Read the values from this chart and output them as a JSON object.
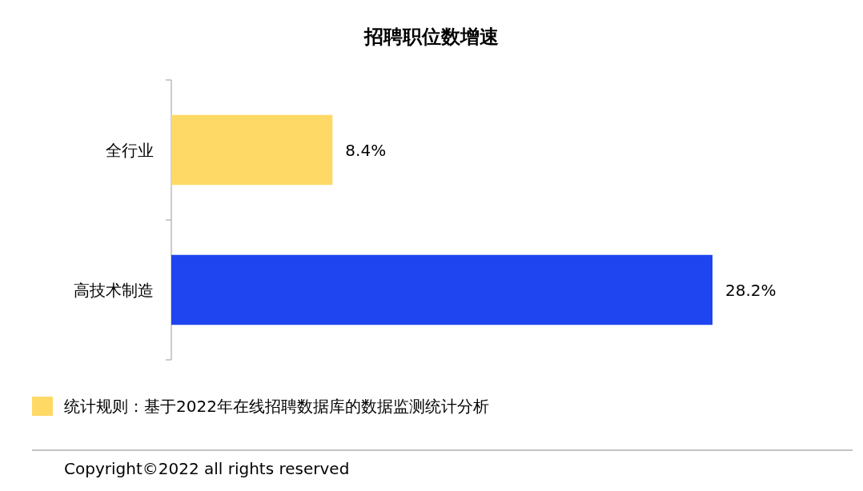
{
  "chart_data": {
    "type": "bar",
    "title": "招聘职位数增速",
    "orientation": "horizontal",
    "categories": [
      "全行业",
      "高技术制造"
    ],
    "values": [
      8.4,
      28.2
    ],
    "colors": [
      "#ffd966",
      "#1f45f0"
    ],
    "value_labels": [
      "8.4%",
      "28.2%"
    ],
    "annotations": [
      "统计规则：基于2022年在线招聘数据库的数据监测统计分析",
      "Copyright©2022 all rights reserved"
    ]
  }
}
